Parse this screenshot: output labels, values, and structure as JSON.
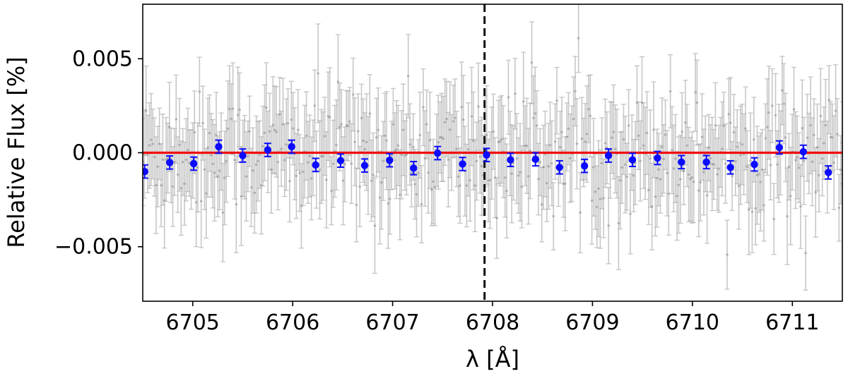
{
  "chart_data": {
    "type": "scatter",
    "title": "",
    "xlabel": "λ [Å]",
    "ylabel": "Relative Flux [%]",
    "xlim": [
      6704.5,
      6711.5
    ],
    "ylim": [
      -0.0079,
      0.0079
    ],
    "xticks": [
      6705,
      6706,
      6707,
      6708,
      6709,
      6710,
      6711
    ],
    "xtick_labels": [
      "6705",
      "6706",
      "6707",
      "6708",
      "6709",
      "6710",
      "6711"
    ],
    "yticks": [
      -0.005,
      0.0,
      0.005
    ],
    "ytick_labels": [
      "−0.005",
      "0.000",
      "0.005"
    ],
    "grid": false,
    "reference_lines": {
      "horizontal": {
        "y": 0.0,
        "color": "#ee1111"
      },
      "vertical": {
        "x": 6707.92,
        "color": "#111111",
        "style": "dashed"
      }
    },
    "raw_series": {
      "color": "#9a9a9a",
      "x_start": 6704.5,
      "x_end": 6711.5,
      "count": 420,
      "typical_error": 0.0022,
      "scatter_sigma": 0.0016
    },
    "binned_series": {
      "color": "#0b0bff",
      "error": 0.00035,
      "points": [
        [
          6704.52,
          -0.001
        ],
        [
          6704.77,
          -0.00052
        ],
        [
          6705.01,
          -0.00058
        ],
        [
          6705.26,
          0.00032
        ],
        [
          6705.5,
          -0.00015
        ],
        [
          6705.75,
          0.00015
        ],
        [
          6705.99,
          0.00032
        ],
        [
          6706.23,
          -0.00065
        ],
        [
          6706.48,
          -0.00042
        ],
        [
          6706.72,
          -0.00068
        ],
        [
          6706.97,
          -0.0004
        ],
        [
          6707.21,
          -0.00082
        ],
        [
          6707.45,
          -2e-05
        ],
        [
          6707.7,
          -0.0006
        ],
        [
          6707.94,
          -0.00012
        ],
        [
          6708.18,
          -0.00038
        ],
        [
          6708.43,
          -0.00035
        ],
        [
          6708.67,
          -0.00078
        ],
        [
          6708.92,
          -0.0007
        ],
        [
          6709.16,
          -0.00015
        ],
        [
          6709.4,
          -0.00038
        ],
        [
          6709.65,
          -0.00028
        ],
        [
          6709.89,
          -0.0005
        ],
        [
          6710.14,
          -0.0005
        ],
        [
          6710.38,
          -0.00078
        ],
        [
          6710.62,
          -0.00062
        ],
        [
          6710.87,
          0.00028
        ],
        [
          6711.11,
          5e-05
        ],
        [
          6711.36,
          -0.00105
        ]
      ]
    }
  }
}
